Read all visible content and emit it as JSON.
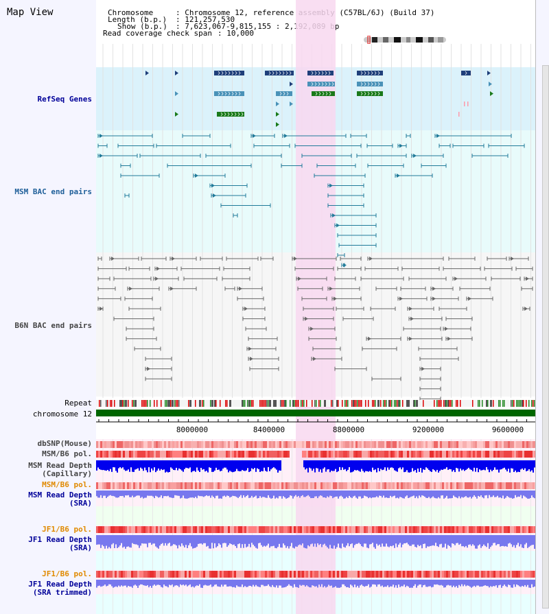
{
  "view_title": "Map View",
  "header": {
    "chromosome_label": "Chromosome",
    "chromosome_value": ": Chromosome 12, reference assembly (C57BL/6J) (Build 37)",
    "length_label": "Length (b.p.)",
    "length_value": ": 121,257,530",
    "show_label": "Show (b.p.)",
    "show_value": ": 7,623,067-9,815,155 : 2,192,089 bp",
    "coverage_label": "Read coverage check span",
    "coverage_value": ": 10,000"
  },
  "tracks": {
    "refseq": "RefSeq Genes",
    "msm_bac": "MSM BAC end pairs",
    "b6n_bac": "B6N BAC end pairs",
    "repeat": "Repeat",
    "chromosome": "chromosome 12",
    "dbsnp": "dbSNP(Mouse)",
    "msm_b6_pol_1": "MSM/B6 pol.",
    "msm_read_depth_cap_1": "MSM Read Depth",
    "msm_read_depth_cap_2": "(Capillary)",
    "msm_b6_pol_2": "MSM/B6 pol.",
    "msm_read_depth_sra_1": "MSM Read Depth",
    "msm_read_depth_sra_2": "(SRA)",
    "jf1_b6_pol_1": "JF1/B6 pol.",
    "jf1_read_depth_sra_1": "JF1 Read Depth",
    "jf1_read_depth_sra_2": "(SRA)",
    "jf1_b6_pol_2": "JF1/B6 pol.",
    "jf1_read_depth_trim_1": "JF1 Read Depth",
    "jf1_read_depth_trim_2": "(SRA trimmed)"
  },
  "axis": {
    "ticks": [
      "8000000",
      "8400000",
      "8800000",
      "9200000",
      "9600000"
    ]
  },
  "colors": {
    "refseq_bg": "#dbf2fb",
    "msm_bg": "#e8fbfb",
    "b6n_bg": "#f6f6f6",
    "highlight": "#f8d8f0",
    "refseq_dark": "#1f3f7a",
    "refseq_mid": "#4a92b8",
    "refseq_green": "#1a7a1a",
    "msm_line": "#1f7a99",
    "b6n_line": "#666666",
    "chrom_bar": "#006600",
    "label_blue": "#000099",
    "label_orange": "#e08a00",
    "pol_red": "#ee4444",
    "depth_blue": "#0000ee",
    "depth_light": "#7777ee"
  }
}
